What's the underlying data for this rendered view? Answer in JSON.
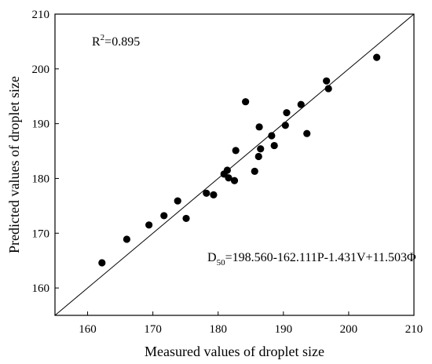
{
  "chart_data": {
    "type": "scatter",
    "xlabel": "Measured values of droplet size",
    "ylabel": "Predicted values of droplet size",
    "xlim": [
      155,
      210
    ],
    "ylim": [
      155,
      210
    ],
    "xticks": [
      160,
      170,
      180,
      190,
      200,
      210
    ],
    "yticks": [
      160,
      170,
      180,
      190,
      200,
      210
    ],
    "r2_text": "R2=0.895",
    "r2": {
      "prefix": "R",
      "superscript": "2",
      "rest": "=0.895"
    },
    "equation": {
      "prefix": "D",
      "subscript": "50",
      "rest": "=198.560-162.111P-1.431V+11.503Φ"
    },
    "reference_line": {
      "from": [
        155,
        155
      ],
      "to": [
        210,
        210
      ]
    },
    "marker_color": "#000000",
    "points": [
      [
        162.2,
        164.6
      ],
      [
        166.0,
        168.9
      ],
      [
        169.4,
        171.5
      ],
      [
        171.7,
        173.2
      ],
      [
        173.8,
        175.9
      ],
      [
        175.1,
        172.7
      ],
      [
        178.2,
        177.3
      ],
      [
        179.3,
        177.0
      ],
      [
        180.9,
        180.8
      ],
      [
        181.4,
        181.5
      ],
      [
        181.6,
        180.1
      ],
      [
        182.5,
        179.6
      ],
      [
        182.7,
        185.1
      ],
      [
        184.2,
        194.0
      ],
      [
        185.6,
        181.3
      ],
      [
        186.2,
        184.0
      ],
      [
        186.3,
        189.4
      ],
      [
        186.5,
        185.4
      ],
      [
        188.2,
        187.8
      ],
      [
        188.6,
        186.0
      ],
      [
        190.3,
        189.7
      ],
      [
        190.5,
        192.0
      ],
      [
        192.7,
        193.5
      ],
      [
        193.6,
        188.2
      ],
      [
        196.6,
        197.8
      ],
      [
        196.9,
        196.4
      ],
      [
        204.3,
        202.1
      ]
    ]
  }
}
